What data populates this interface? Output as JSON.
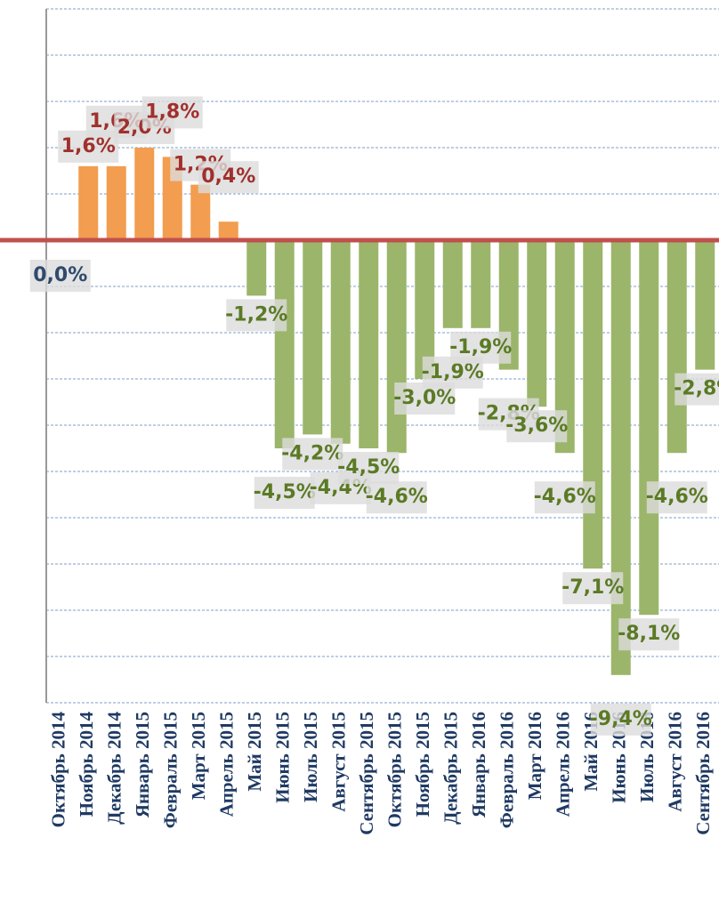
{
  "chart_data": {
    "type": "bar",
    "categories": [
      "Октябрь 2014",
      "Ноябрь 2014",
      "Декабрь 2014",
      "Январь 2015",
      "Февраль 2015",
      "Март 2015",
      "Апрель 2015",
      "Май 2015",
      "Июнь 2015",
      "Июль 2015",
      "Август 2015",
      "Сентябрь 2015",
      "Октябрь 2015",
      "Ноябрь 2015",
      "Декабрь 2015",
      "Январь 2016",
      "Февраль 2016",
      "Март 2016",
      "Апрель 2016",
      "Май 2016",
      "Июнь 2016",
      "Июль 2016",
      "Август 2016",
      "Сентябрь 2016"
    ],
    "values": [
      0.0,
      1.6,
      1.6,
      2.0,
      1.8,
      1.2,
      0.4,
      -1.2,
      -4.5,
      -4.2,
      -4.4,
      -4.5,
      -4.6,
      -3.0,
      -1.9,
      -1.9,
      -2.8,
      -3.6,
      -4.6,
      -7.1,
      -9.4,
      -8.1,
      -4.6,
      -2.8
    ],
    "value_labels": [
      "0,0%",
      "1,6%",
      "1,6%",
      "2,0%",
      "1,8%",
      "1,2%",
      "0,4%",
      "-1,2%",
      "-4,5%",
      "-4,2%",
      "-4,4%",
      "-4,5%",
      "-4,6%",
      "-3,0%",
      "-1,9%",
      "-1,9%",
      "-2,8%",
      "-3,6%",
      "-4,6%",
      "-7,1%",
      "-9,4%",
      "-8,1%",
      "-4,6%",
      "-2,8%"
    ],
    "positive_color": "#f29d4f",
    "negative_color": "#9bb56a",
    "positive_label_color": "#a0302c",
    "negative_label_color": "#5b7a25",
    "zero_label_color": "#2f4a6d",
    "ylim": [
      -10,
      5
    ],
    "yticks": [
      -10,
      -9,
      -8,
      -7,
      -6,
      -5,
      -4,
      -3,
      -2,
      -1,
      0,
      1,
      2,
      3,
      4,
      5
    ],
    "grid": true
  }
}
